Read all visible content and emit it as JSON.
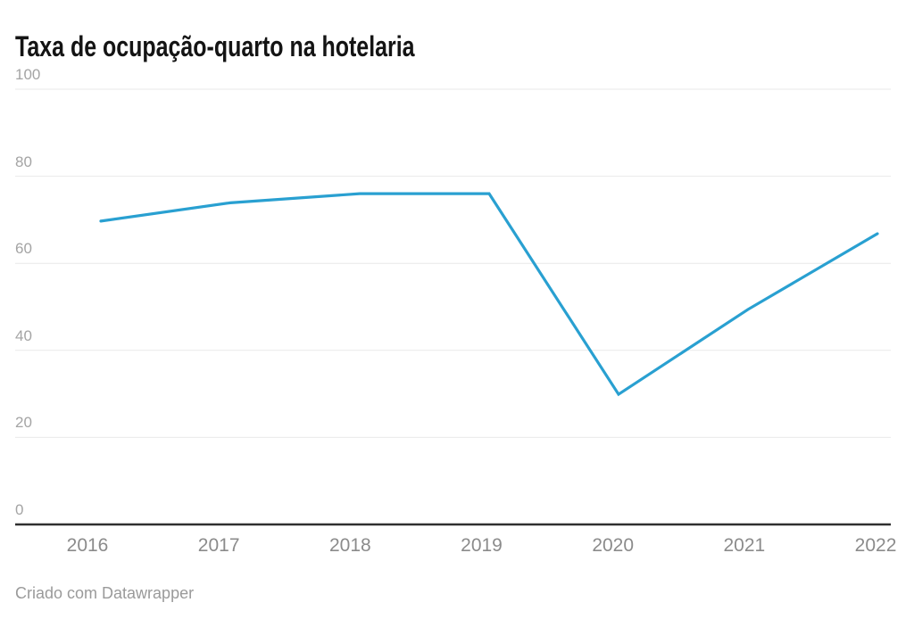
{
  "header": {
    "title": "Taxa de ocupação-quarto na hotelaria"
  },
  "footer": {
    "credit": "Criado com Datawrapper"
  },
  "colors": {
    "line": "#29a0d1",
    "gridline": "#e9e9e9",
    "axis": "#2f2f2f",
    "y_label": "#a4a4a4",
    "x_label": "#8b8b8b",
    "title": "#141414",
    "credit": "#9a9a9a",
    "background": "#ffffff"
  },
  "chart_data": {
    "type": "line",
    "title": "Taxa de ocupação-quarto na hotelaria",
    "categories": [
      "2016",
      "2017",
      "2018",
      "2019",
      "2020",
      "2021",
      "2022"
    ],
    "values": [
      69.7,
      73.9,
      76.0,
      76.0,
      29.9,
      49.4,
      66.8
    ],
    "xlabel": "",
    "ylabel": "",
    "ylim": [
      0,
      100
    ],
    "yticks": [
      0,
      20,
      40,
      60,
      80,
      100
    ],
    "grid": true,
    "legend": false,
    "line_color": "#29a0d1",
    "credit": "Criado com Datawrapper"
  }
}
